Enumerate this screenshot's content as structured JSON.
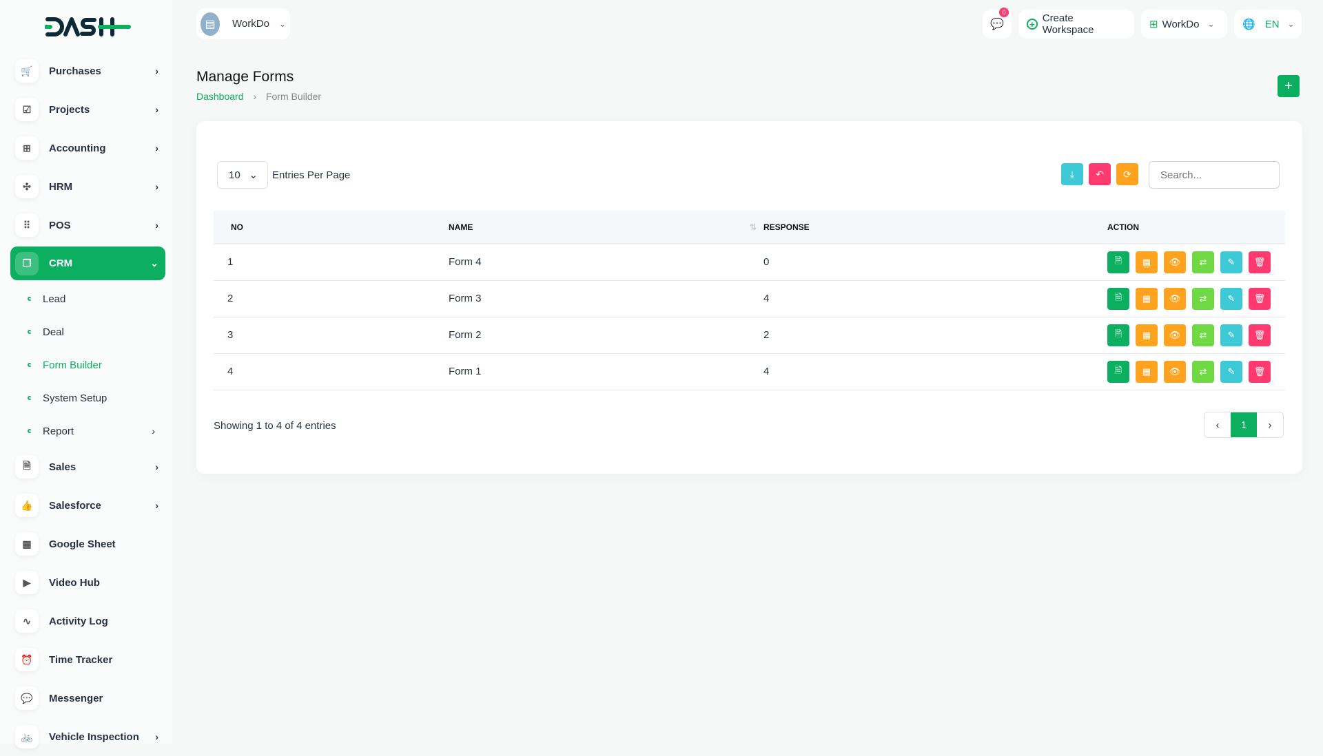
{
  "brand": {
    "logo_text": "DASH"
  },
  "header": {
    "workspace": "WorkDo",
    "notification_count": "0",
    "create_workspace": "Create Workspace",
    "company": "WorkDo",
    "language": "EN"
  },
  "sidebar": {
    "items": [
      {
        "label": "Purchases",
        "icon": "cart-icon",
        "chevron": true
      },
      {
        "label": "Projects",
        "icon": "check-square-icon",
        "chevron": true
      },
      {
        "label": "Accounting",
        "icon": "grid-plus-icon",
        "chevron": true
      },
      {
        "label": "HRM",
        "icon": "users-icon",
        "chevron": true
      },
      {
        "label": "POS",
        "icon": "dots-grid-icon",
        "chevron": true
      },
      {
        "label": "CRM",
        "icon": "layers-icon",
        "chevron": true,
        "active": true
      }
    ],
    "crm_sub": [
      {
        "label": "Lead"
      },
      {
        "label": "Deal"
      },
      {
        "label": "Form Builder",
        "active": true
      },
      {
        "label": "System Setup"
      },
      {
        "label": "Report",
        "chevron": true
      }
    ],
    "items2": [
      {
        "label": "Sales",
        "icon": "file-icon",
        "chevron": true
      },
      {
        "label": "Salesforce",
        "icon": "thumb-up-icon",
        "chevron": true
      },
      {
        "label": "Google Sheet",
        "icon": "table-icon"
      },
      {
        "label": "Video Hub",
        "icon": "video-icon"
      },
      {
        "label": "Activity Log",
        "icon": "activity-icon"
      },
      {
        "label": "Time Tracker",
        "icon": "alarm-icon"
      },
      {
        "label": "Messenger",
        "icon": "chat-icon"
      },
      {
        "label": "Vehicle Inspection",
        "icon": "bike-icon",
        "chevron": true
      }
    ]
  },
  "page": {
    "title": "Manage Forms",
    "breadcrumb": [
      "Dashboard",
      "Form Builder"
    ]
  },
  "table_controls": {
    "per_page": "10",
    "per_page_label": "Entries Per Page",
    "search_placeholder": "Search..."
  },
  "table": {
    "columns": [
      "NO",
      "NAME",
      "RESPONSE",
      "ACTION"
    ],
    "rows": [
      {
        "no": "1",
        "name": "Form 4",
        "response": "0"
      },
      {
        "no": "2",
        "name": "Form 3",
        "response": "4"
      },
      {
        "no": "3",
        "name": "Form 2",
        "response": "2"
      },
      {
        "no": "4",
        "name": "Form 1",
        "response": "4"
      }
    ]
  },
  "footer": {
    "showing": "Showing 1 to 4 of 4 entries",
    "current_page": "1"
  },
  "colors": {
    "primary": "#0caf60",
    "orange": "#ffa21d",
    "cyan": "#3ec9d6",
    "pink": "#ff3a6e",
    "lime": "#6fd943"
  }
}
